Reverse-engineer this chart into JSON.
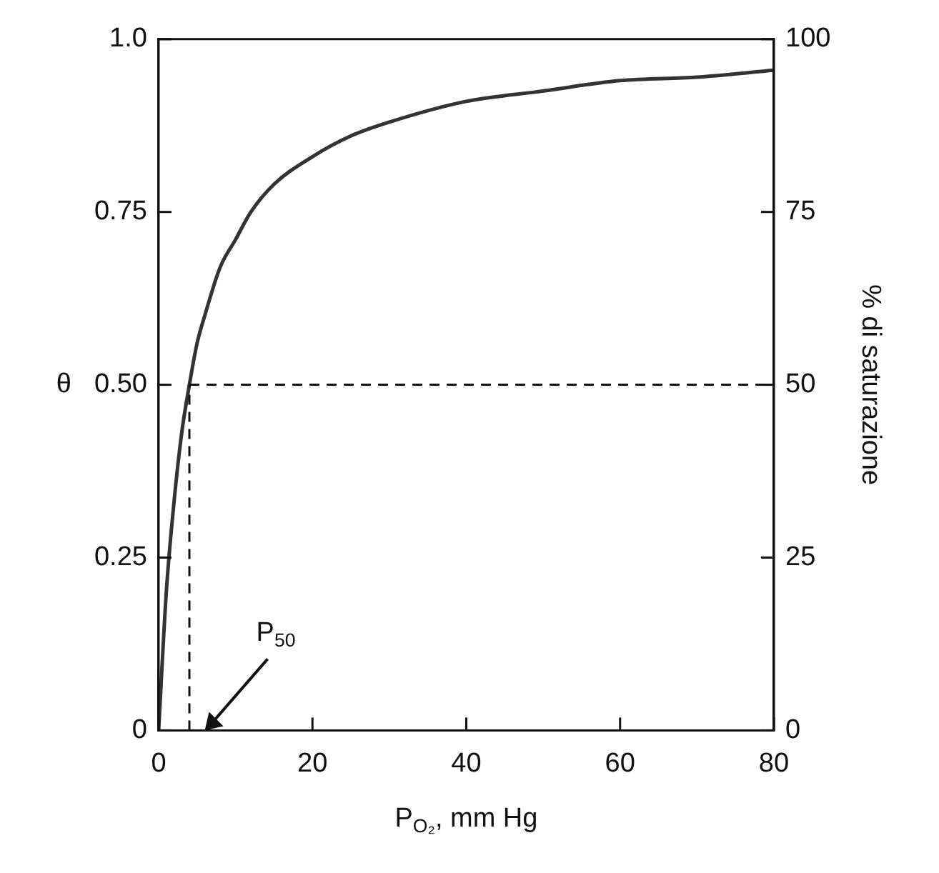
{
  "chart_data": {
    "type": "line",
    "xlabel": "P$_{O₂}$, mm Hg",
    "ylabel": "θ",
    "y2label": "% di saturazione",
    "x": [
      0,
      1,
      2,
      3,
      4,
      5,
      6,
      8,
      10,
      12,
      15,
      20,
      25,
      30,
      40,
      50,
      60,
      70,
      80
    ],
    "series": [
      {
        "color": "#333333",
        "values": [
          0,
          0.2,
          0.33,
          0.43,
          0.5,
          0.56,
          0.6,
          0.67,
          0.71,
          0.75,
          0.79,
          0.83,
          0.86,
          0.88,
          0.91,
          0.925,
          0.94,
          0.945,
          0.955
        ]
      }
    ],
    "xlim": [
      0,
      80
    ],
    "xticks": [
      0,
      20,
      40,
      60,
      80
    ],
    "ylim": [
      0,
      1
    ],
    "yticks": [
      0,
      0.25,
      {
        "value": 0.5,
        "label": "0.50"
      },
      0.75,
      {
        "value": 1,
        "label": "1.0"
      }
    ],
    "y2lim": [
      0,
      100
    ],
    "y2ticks": [
      0,
      25,
      50,
      75,
      100
    ],
    "ref_lines": [
      {
        "axis": "y",
        "value": 0.5,
        "line_style": "dashed"
      },
      {
        "axis": "x",
        "value": 4,
        "line_style": "dashed"
      }
    ],
    "annotations": [
      "P$_{50}$"
    ],
    "grid": false,
    "legend": false
  }
}
